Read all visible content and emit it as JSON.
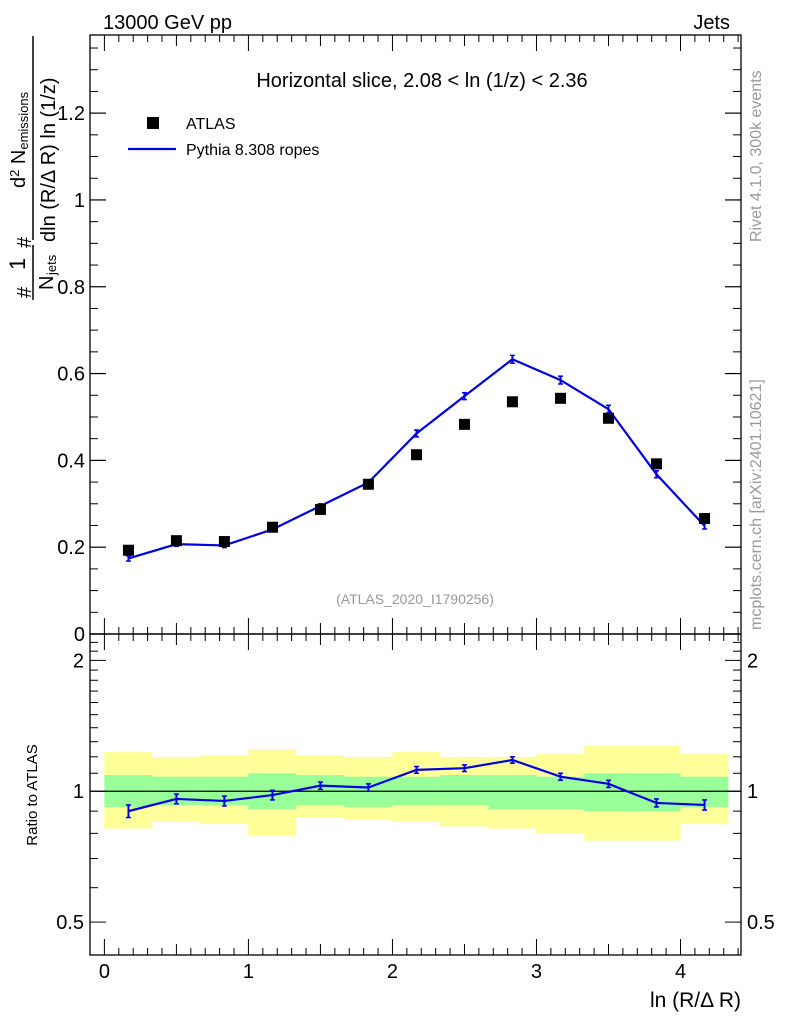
{
  "header": {
    "left": "13000 GeV pp",
    "right": "Jets"
  },
  "side_labels": {
    "rivet": "Rivet 4.1.0,  300k events",
    "mcplots": "mcplots.cern.ch [arXiv:2401.10621]"
  },
  "colors": {
    "mc_line": "#0000e0",
    "data_marker": "#000000",
    "band_inner": "#99ff99",
    "band_outer": "#ffff99",
    "watermark": "#999999"
  },
  "chart_data": [
    {
      "type": "scatter",
      "panel": "main",
      "title": "Horizontal slice, 2.08 < ln (1/z) < 2.36",
      "watermark": "(ATLAS_2020_I1790256)",
      "ylabel_parts": {
        "hash1": "#",
        "numer1": "1",
        "denom1": "N",
        "denom1_sub": "jets",
        "hash2": "#",
        "numer2": "d",
        "numer2_sup": "2",
        "numer2_rest": " N",
        "numer2_sub": "emissions",
        "denom2": "dln (R/Δ R) ln (1/z)"
      },
      "xlim": [
        -0.1,
        4.42
      ],
      "ylim": [
        0,
        1.38
      ],
      "yticks": [
        0,
        0.2,
        0.4,
        0.6,
        0.8,
        1,
        1.2
      ],
      "ytick_labels": [
        "0",
        "0.2",
        "0.4",
        "0.6",
        "0.8",
        "1",
        "1.2"
      ],
      "legend": {
        "position": "top-left",
        "entries": [
          {
            "label": "ATLAS",
            "kind": "marker"
          },
          {
            "label": "Pythia 8.308 ropes",
            "kind": "line"
          }
        ]
      },
      "x": [
        0.167,
        0.5,
        0.833,
        1.167,
        1.5,
        1.833,
        2.167,
        2.5,
        2.833,
        3.167,
        3.5,
        3.833,
        4.167
      ],
      "series": [
        {
          "name": "ATLAS",
          "values": [
            0.193,
            0.215,
            0.213,
            0.246,
            0.287,
            0.345,
            0.413,
            0.483,
            0.535,
            0.543,
            0.497,
            0.392,
            0.266
          ]
        },
        {
          "name": "Pythia 8.308 ropes",
          "values": [
            0.174,
            0.207,
            0.204,
            0.241,
            0.295,
            0.349,
            0.462,
            0.548,
            0.633,
            0.585,
            0.518,
            0.368,
            0.249
          ],
          "errors": [
            0.006,
            0.005,
            0.005,
            0.005,
            0.005,
            0.006,
            0.008,
            0.008,
            0.009,
            0.009,
            0.009,
            0.008,
            0.007
          ]
        }
      ]
    },
    {
      "type": "line",
      "panel": "ratio",
      "ylabel": "Ratio to ATLAS",
      "xlabel": "ln (R/Δ R)",
      "xlim": [
        -0.1,
        4.42
      ],
      "ylim": [
        0.42,
        2.3
      ],
      "log_y": true,
      "xticks": [
        0,
        1,
        2,
        3,
        4
      ],
      "xtick_labels": [
        "0",
        "1",
        "2",
        "3",
        "4"
      ],
      "yticks": [
        0.5,
        1,
        2
      ],
      "ytick_labels": [
        "0.5",
        "1",
        "2"
      ],
      "x": [
        0.167,
        0.5,
        0.833,
        1.167,
        1.5,
        1.833,
        2.167,
        2.5,
        2.833,
        3.167,
        3.5,
        3.833,
        4.167
      ],
      "bin_edges": [
        0,
        0.333,
        0.667,
        1,
        1.333,
        1.667,
        2,
        2.333,
        2.667,
        3,
        3.333,
        3.667,
        4,
        4.333
      ],
      "band_inner": {
        "lo": [
          0.92,
          0.93,
          0.93,
          0.91,
          0.93,
          0.92,
          0.93,
          0.93,
          0.91,
          0.91,
          0.9,
          0.9,
          0.92
        ],
        "hi": [
          1.09,
          1.08,
          1.08,
          1.1,
          1.09,
          1.08,
          1.08,
          1.09,
          1.09,
          1.08,
          1.1,
          1.1,
          1.08
        ]
      },
      "band_outer": {
        "lo": [
          0.82,
          0.85,
          0.84,
          0.79,
          0.87,
          0.86,
          0.85,
          0.83,
          0.82,
          0.8,
          0.77,
          0.77,
          0.84
        ],
        "hi": [
          1.23,
          1.2,
          1.21,
          1.25,
          1.21,
          1.2,
          1.23,
          1.2,
          1.2,
          1.22,
          1.27,
          1.27,
          1.22
        ]
      },
      "series": [
        {
          "name": "Pythia 8.308 ropes / ATLAS",
          "values": [
            0.9,
            0.96,
            0.95,
            0.98,
            1.03,
            1.02,
            1.12,
            1.13,
            1.18,
            1.08,
            1.04,
            0.94,
            0.93
          ],
          "errors": [
            0.03,
            0.025,
            0.025,
            0.025,
            0.02,
            0.02,
            0.02,
            0.02,
            0.02,
            0.02,
            0.02,
            0.02,
            0.025
          ]
        }
      ]
    }
  ]
}
